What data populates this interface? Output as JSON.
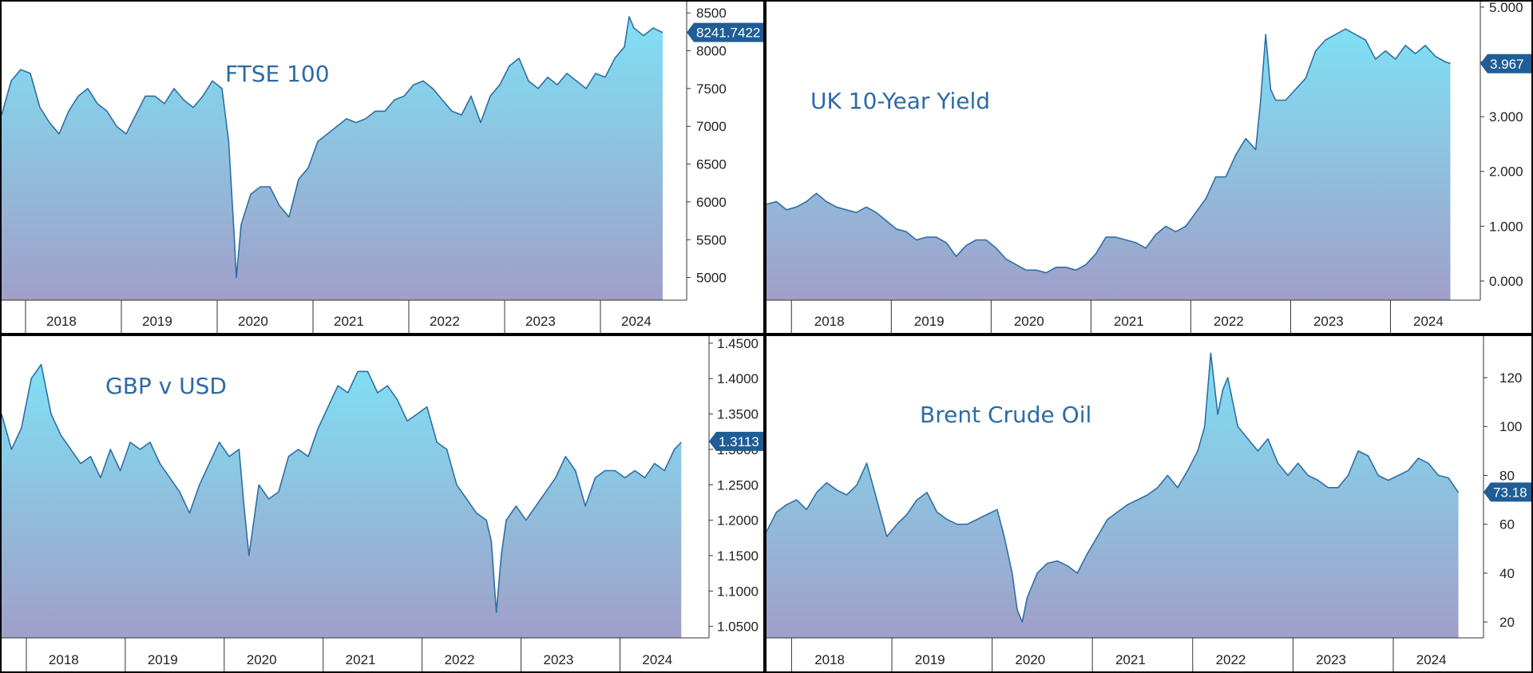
{
  "colors": {
    "line": "#2f6ea6",
    "fill_top": "#7fe0f4",
    "fill_bottom": "#a09fc8",
    "badge": "#1f5d96",
    "axis": "#333333",
    "title": "#2e6aa5"
  },
  "chart_data": [
    {
      "id": "ftse",
      "type": "area",
      "title": "FTSE 100",
      "last_value_label": "8241.7422",
      "last_value": 8241.7422,
      "ylim": [
        4700,
        8650
      ],
      "yticks": [
        5000,
        5500,
        6000,
        6500,
        7000,
        7500,
        8000,
        8500
      ],
      "ytick_labels": [
        "5000",
        "5500",
        "6000",
        "6500",
        "7000",
        "7500",
        "8000",
        "8500"
      ],
      "xlim": [
        2017.75,
        2024.9
      ],
      "years": [
        "2018",
        "2019",
        "2020",
        "2021",
        "2022",
        "2023",
        "2024"
      ],
      "grid": false,
      "series": [
        {
          "x": [
            2017.75,
            2017.85,
            2017.95,
            2018.05,
            2018.15,
            2018.25,
            2018.35,
            2018.45,
            2018.55,
            2018.65,
            2018.75,
            2018.85,
            2018.95,
            2019.05,
            2019.15,
            2019.25,
            2019.35,
            2019.45,
            2019.55,
            2019.65,
            2019.75,
            2019.85,
            2019.95,
            2020.05,
            2020.12,
            2020.18,
            2020.2,
            2020.25,
            2020.35,
            2020.45,
            2020.55,
            2020.65,
            2020.75,
            2020.85,
            2020.95,
            2021.05,
            2021.15,
            2021.25,
            2021.35,
            2021.45,
            2021.55,
            2021.65,
            2021.75,
            2021.85,
            2021.95,
            2022.05,
            2022.15,
            2022.25,
            2022.35,
            2022.45,
            2022.55,
            2022.65,
            2022.75,
            2022.85,
            2022.95,
            2023.05,
            2023.15,
            2023.25,
            2023.35,
            2023.45,
            2023.55,
            2023.65,
            2023.75,
            2023.85,
            2023.95,
            2024.05,
            2024.15,
            2024.25,
            2024.3,
            2024.35,
            2024.45,
            2024.55,
            2024.65
          ],
          "y": [
            7150,
            7600,
            7750,
            7700,
            7250,
            7050,
            6900,
            7200,
            7400,
            7500,
            7300,
            7200,
            7000,
            6900,
            7150,
            7400,
            7400,
            7300,
            7500,
            7350,
            7250,
            7400,
            7600,
            7500,
            6800,
            5500,
            5000,
            5700,
            6100,
            6200,
            6200,
            5950,
            5800,
            6300,
            6450,
            6800,
            6900,
            7000,
            7100,
            7050,
            7100,
            7200,
            7200,
            7350,
            7400,
            7550,
            7600,
            7500,
            7350,
            7200,
            7150,
            7400,
            7050,
            7400,
            7550,
            7800,
            7900,
            7600,
            7500,
            7650,
            7550,
            7700,
            7600,
            7500,
            7700,
            7650,
            7900,
            8050,
            8450,
            8300,
            8200,
            8300,
            8240
          ]
        }
      ]
    },
    {
      "id": "uk10y",
      "type": "area",
      "title": "UK 10-Year Yield",
      "last_value_label": "3.967",
      "last_value": 3.967,
      "ylim": [
        -0.35,
        5.1
      ],
      "yticks": [
        0,
        1,
        2,
        3,
        4,
        5
      ],
      "ytick_labels": [
        "0.000",
        "1.000",
        "2.000",
        "3.000",
        "4.000",
        "5.000"
      ],
      "xlim": [
        2017.75,
        2024.9
      ],
      "years": [
        "2018",
        "2019",
        "2020",
        "2021",
        "2022",
        "2023",
        "2024"
      ],
      "grid": false,
      "series": [
        {
          "x": [
            2017.75,
            2017.85,
            2017.95,
            2018.05,
            2018.15,
            2018.25,
            2018.35,
            2018.45,
            2018.55,
            2018.65,
            2018.75,
            2018.85,
            2018.95,
            2019.05,
            2019.15,
            2019.25,
            2019.35,
            2019.45,
            2019.55,
            2019.65,
            2019.75,
            2019.85,
            2019.95,
            2020.05,
            2020.15,
            2020.25,
            2020.35,
            2020.45,
            2020.55,
            2020.65,
            2020.75,
            2020.85,
            2020.95,
            2021.05,
            2021.15,
            2021.25,
            2021.35,
            2021.45,
            2021.55,
            2021.65,
            2021.75,
            2021.85,
            2021.95,
            2022.05,
            2022.15,
            2022.25,
            2022.35,
            2022.45,
            2022.55,
            2022.65,
            2022.7,
            2022.75,
            2022.8,
            2022.85,
            2022.95,
            2023.05,
            2023.15,
            2023.25,
            2023.35,
            2023.45,
            2023.55,
            2023.65,
            2023.75,
            2023.85,
            2023.95,
            2024.05,
            2024.15,
            2024.25,
            2024.35,
            2024.45,
            2024.55,
            2024.6
          ],
          "y": [
            1.4,
            1.45,
            1.3,
            1.35,
            1.45,
            1.6,
            1.45,
            1.35,
            1.3,
            1.25,
            1.35,
            1.25,
            1.1,
            0.95,
            0.9,
            0.75,
            0.8,
            0.8,
            0.7,
            0.45,
            0.65,
            0.75,
            0.75,
            0.6,
            0.4,
            0.3,
            0.2,
            0.2,
            0.15,
            0.25,
            0.25,
            0.2,
            0.3,
            0.5,
            0.8,
            0.8,
            0.75,
            0.7,
            0.6,
            0.85,
            1.0,
            0.9,
            1.0,
            1.25,
            1.5,
            1.9,
            1.9,
            2.3,
            2.6,
            2.4,
            3.3,
            4.5,
            3.5,
            3.3,
            3.3,
            3.5,
            3.7,
            4.2,
            4.4,
            4.5,
            4.6,
            4.5,
            4.4,
            4.05,
            4.2,
            4.05,
            4.3,
            4.15,
            4.3,
            4.1,
            4.0,
            3.97
          ]
        }
      ]
    },
    {
      "id": "gbpusd",
      "type": "area",
      "title": "GBP v USD",
      "last_value_label": "1.3113",
      "last_value": 1.3113,
      "ylim": [
        1.0338,
        1.46
      ],
      "yticks": [
        1.05,
        1.1,
        1.15,
        1.2,
        1.25,
        1.3,
        1.35,
        1.4,
        1.45
      ],
      "ytick_labels": [
        "1.0500",
        "1.1000",
        "1.1500",
        "1.2000",
        "1.2500",
        "1.3000",
        "1.3500",
        "1.4000",
        "1.4500"
      ],
      "xlim": [
        2017.75,
        2024.9
      ],
      "years": [
        "2018",
        "2019",
        "2020",
        "2021",
        "2022",
        "2023",
        "2024"
      ],
      "grid": false,
      "series": [
        {
          "x": [
            2017.75,
            2017.85,
            2017.95,
            2018.05,
            2018.15,
            2018.25,
            2018.35,
            2018.45,
            2018.55,
            2018.65,
            2018.75,
            2018.85,
            2018.95,
            2019.05,
            2019.15,
            2019.25,
            2019.35,
            2019.45,
            2019.55,
            2019.65,
            2019.75,
            2019.85,
            2019.95,
            2020.05,
            2020.15,
            2020.2,
            2020.25,
            2020.35,
            2020.45,
            2020.55,
            2020.65,
            2020.75,
            2020.85,
            2020.95,
            2021.05,
            2021.15,
            2021.25,
            2021.35,
            2021.45,
            2021.55,
            2021.65,
            2021.75,
            2021.85,
            2021.95,
            2022.05,
            2022.15,
            2022.25,
            2022.35,
            2022.45,
            2022.55,
            2022.65,
            2022.7,
            2022.75,
            2022.8,
            2022.85,
            2022.95,
            2023.05,
            2023.15,
            2023.25,
            2023.35,
            2023.45,
            2023.55,
            2023.65,
            2023.75,
            2023.85,
            2023.95,
            2024.05,
            2024.15,
            2024.25,
            2024.35,
            2024.45,
            2024.55,
            2024.62
          ],
          "y": [
            1.35,
            1.3,
            1.33,
            1.4,
            1.42,
            1.35,
            1.32,
            1.3,
            1.28,
            1.29,
            1.26,
            1.3,
            1.27,
            1.31,
            1.3,
            1.31,
            1.28,
            1.26,
            1.24,
            1.21,
            1.25,
            1.28,
            1.31,
            1.29,
            1.3,
            1.22,
            1.15,
            1.25,
            1.23,
            1.24,
            1.29,
            1.3,
            1.29,
            1.33,
            1.36,
            1.39,
            1.38,
            1.41,
            1.41,
            1.38,
            1.39,
            1.37,
            1.34,
            1.35,
            1.36,
            1.31,
            1.3,
            1.25,
            1.23,
            1.21,
            1.2,
            1.17,
            1.07,
            1.15,
            1.2,
            1.22,
            1.2,
            1.22,
            1.24,
            1.26,
            1.29,
            1.27,
            1.22,
            1.26,
            1.27,
            1.27,
            1.26,
            1.27,
            1.26,
            1.28,
            1.27,
            1.3,
            1.31
          ]
        }
      ]
    },
    {
      "id": "brent",
      "type": "area",
      "title": "Brent Crude Oil",
      "last_value_label": "73.18",
      "last_value": 73.18,
      "ylim": [
        13.5,
        137
      ],
      "yticks": [
        20,
        40,
        60,
        80,
        100,
        120
      ],
      "ytick_labels": [
        "20",
        "40",
        "60",
        "80",
        "100",
        "120"
      ],
      "xlim": [
        2017.75,
        2024.9
      ],
      "years": [
        "2018",
        "2019",
        "2020",
        "2021",
        "2022",
        "2023",
        "2024"
      ],
      "grid": false,
      "series": [
        {
          "x": [
            2017.75,
            2017.85,
            2017.95,
            2018.05,
            2018.15,
            2018.25,
            2018.35,
            2018.45,
            2018.55,
            2018.65,
            2018.75,
            2018.85,
            2018.95,
            2019.05,
            2019.15,
            2019.25,
            2019.35,
            2019.45,
            2019.55,
            2019.65,
            2019.75,
            2019.85,
            2019.95,
            2020.05,
            2020.12,
            2020.2,
            2020.25,
            2020.3,
            2020.35,
            2020.45,
            2020.55,
            2020.65,
            2020.75,
            2020.85,
            2020.95,
            2021.05,
            2021.15,
            2021.25,
            2021.35,
            2021.45,
            2021.55,
            2021.65,
            2021.75,
            2021.85,
            2021.95,
            2022.05,
            2022.12,
            2022.18,
            2022.25,
            2022.3,
            2022.35,
            2022.45,
            2022.55,
            2022.65,
            2022.75,
            2022.85,
            2022.95,
            2023.05,
            2023.15,
            2023.25,
            2023.35,
            2023.45,
            2023.55,
            2023.65,
            2023.75,
            2023.85,
            2023.95,
            2024.05,
            2024.15,
            2024.25,
            2024.35,
            2024.45,
            2024.55,
            2024.65
          ],
          "y": [
            57,
            65,
            68,
            70,
            66,
            73,
            77,
            74,
            72,
            76,
            85,
            70,
            55,
            60,
            64,
            70,
            73,
            65,
            62,
            60,
            60,
            62,
            64,
            66,
            55,
            40,
            25,
            20,
            30,
            40,
            44,
            45,
            43,
            40,
            48,
            55,
            62,
            65,
            68,
            70,
            72,
            75,
            80,
            75,
            82,
            90,
            100,
            130,
            105,
            115,
            120,
            100,
            95,
            90,
            95,
            85,
            80,
            85,
            80,
            78,
            75,
            75,
            80,
            90,
            88,
            80,
            78,
            80,
            82,
            87,
            85,
            80,
            79,
            73
          ]
        }
      ]
    }
  ]
}
